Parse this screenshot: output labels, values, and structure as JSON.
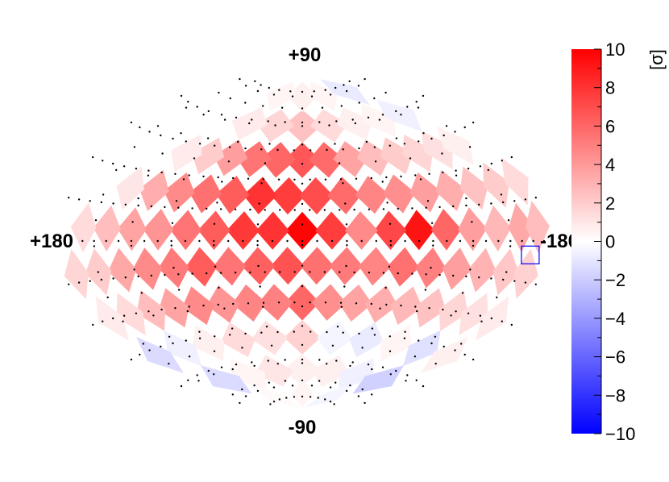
{
  "chart_data": {
    "type": "heatmap",
    "projection": "hammer-aitoff",
    "coordinate_labels": {
      "north": "+90",
      "south": "-90",
      "left": "+180",
      "right": "-180"
    },
    "colorbar": {
      "unit": "[σ]",
      "range": [
        -10,
        10
      ],
      "ticks": [
        "10",
        "8",
        "6",
        "4",
        "2",
        "0",
        "−2",
        "−4",
        "−6",
        "−8",
        "−10"
      ],
      "low_color": "#0000ff",
      "mid_color": "#ffffff",
      "high_color": "#ff0000"
    },
    "marker_box": {
      "lon": -168,
      "lat": -5,
      "color": "#0000ff"
    },
    "cells": [
      {
        "lon": 0,
        "lat": 5,
        "value": 9.8
      },
      {
        "lon": -80,
        "lat": 5,
        "value": 9.2
      },
      {
        "lon": 20,
        "lat": 5,
        "value": 8.0
      },
      {
        "lon": -20,
        "lat": 5,
        "value": 7.6
      },
      {
        "lon": 40,
        "lat": 5,
        "value": 7.8
      },
      {
        "lon": -60,
        "lat": 5,
        "value": 7.2
      },
      {
        "lon": 60,
        "lat": 5,
        "value": 6.4
      },
      {
        "lon": -100,
        "lat": 5,
        "value": 6.0
      },
      {
        "lon": 80,
        "lat": 5,
        "value": 5.4
      },
      {
        "lon": -40,
        "lat": 5,
        "value": 4.6
      },
      {
        "lon": 100,
        "lat": 5,
        "value": 4.2
      },
      {
        "lon": -120,
        "lat": 5,
        "value": 3.8
      },
      {
        "lon": 120,
        "lat": 5,
        "value": 3.6
      },
      {
        "lon": -140,
        "lat": 5,
        "value": 2.8
      },
      {
        "lon": -160,
        "lat": 5,
        "value": 3.4
      },
      {
        "lon": 140,
        "lat": 5,
        "value": 2.6
      },
      {
        "lon": 160,
        "lat": 5,
        "value": 1.4
      },
      {
        "lon": -175,
        "lat": 5,
        "value": 2.6
      },
      {
        "lon": 10,
        "lat": 22,
        "value": 7.6
      },
      {
        "lon": -10,
        "lat": 22,
        "value": 7.0
      },
      {
        "lon": 30,
        "lat": 22,
        "value": 8.0
      },
      {
        "lon": -30,
        "lat": 22,
        "value": 5.8
      },
      {
        "lon": 50,
        "lat": 22,
        "value": 6.4
      },
      {
        "lon": -50,
        "lat": 22,
        "value": 4.8
      },
      {
        "lon": 70,
        "lat": 22,
        "value": 5.6
      },
      {
        "lon": -70,
        "lat": 22,
        "value": 4.4
      },
      {
        "lon": 90,
        "lat": 22,
        "value": 4.6
      },
      {
        "lon": -90,
        "lat": 22,
        "value": 3.8
      },
      {
        "lon": 110,
        "lat": 22,
        "value": 3.2
      },
      {
        "lon": -110,
        "lat": 22,
        "value": 3.2
      },
      {
        "lon": -130,
        "lat": 22,
        "value": 2.4
      },
      {
        "lon": -150,
        "lat": 22,
        "value": 2.0
      },
      {
        "lon": -170,
        "lat": 22,
        "value": 1.4
      },
      {
        "lon": 130,
        "lat": 22,
        "value": 1.0
      },
      {
        "lon": 0,
        "lat": 40,
        "value": 6.6
      },
      {
        "lon": 20,
        "lat": 40,
        "value": 6.0
      },
      {
        "lon": -20,
        "lat": 40,
        "value": 5.8
      },
      {
        "lon": 40,
        "lat": 40,
        "value": 5.4
      },
      {
        "lon": -40,
        "lat": 40,
        "value": 3.6
      },
      {
        "lon": 60,
        "lat": 40,
        "value": 3.8
      },
      {
        "lon": -60,
        "lat": 40,
        "value": 2.6
      },
      {
        "lon": 80,
        "lat": 40,
        "value": 2.0
      },
      {
        "lon": -80,
        "lat": 40,
        "value": 2.0
      },
      {
        "lon": -100,
        "lat": 40,
        "value": 1.6
      },
      {
        "lon": -120,
        "lat": 40,
        "value": 1.2
      },
      {
        "lon": 100,
        "lat": 40,
        "value": 0.8
      },
      {
        "lon": -140,
        "lat": 40,
        "value": 0.6
      },
      {
        "lon": 0,
        "lat": 58,
        "value": 2.4
      },
      {
        "lon": 30,
        "lat": 58,
        "value": 1.6
      },
      {
        "lon": -30,
        "lat": 58,
        "value": 1.4
      },
      {
        "lon": 60,
        "lat": 58,
        "value": 0.8
      },
      {
        "lon": -60,
        "lat": 58,
        "value": 0.6
      },
      {
        "lon": -90,
        "lat": 58,
        "value": 0.4
      },
      {
        "lon": -120,
        "lat": 58,
        "value": -0.6
      },
      {
        "lon": 0,
        "lat": 75,
        "value": 0.6
      },
      {
        "lon": 45,
        "lat": 75,
        "value": 0.4
      },
      {
        "lon": -45,
        "lat": 75,
        "value": 0.4
      },
      {
        "lon": -100,
        "lat": 75,
        "value": -0.8
      },
      {
        "lon": 10,
        "lat": -12,
        "value": 6.8
      },
      {
        "lon": -10,
        "lat": -12,
        "value": 5.6
      },
      {
        "lon": 30,
        "lat": -12,
        "value": 6.2
      },
      {
        "lon": -30,
        "lat": -12,
        "value": 5.2
      },
      {
        "lon": 50,
        "lat": -12,
        "value": 5.4
      },
      {
        "lon": -50,
        "lat": -12,
        "value": 4.8
      },
      {
        "lon": 70,
        "lat": -12,
        "value": 6.4
      },
      {
        "lon": -70,
        "lat": -12,
        "value": 5.6
      },
      {
        "lon": 90,
        "lat": -12,
        "value": 5.2
      },
      {
        "lon": -90,
        "lat": -12,
        "value": 5.0
      },
      {
        "lon": 110,
        "lat": -12,
        "value": 4.6
      },
      {
        "lon": -110,
        "lat": -12,
        "value": 3.8
      },
      {
        "lon": 130,
        "lat": -12,
        "value": 3.4
      },
      {
        "lon": -130,
        "lat": -12,
        "value": 3.0
      },
      {
        "lon": 150,
        "lat": -12,
        "value": 2.0
      },
      {
        "lon": -150,
        "lat": -12,
        "value": 2.2
      },
      {
        "lon": 170,
        "lat": -12,
        "value": 1.6
      },
      {
        "lon": -168,
        "lat": -12,
        "value": 1.8
      },
      {
        "lon": 0,
        "lat": -30,
        "value": 6.0
      },
      {
        "lon": 20,
        "lat": -30,
        "value": 5.0
      },
      {
        "lon": -20,
        "lat": -30,
        "value": 4.4
      },
      {
        "lon": 40,
        "lat": -30,
        "value": 4.8
      },
      {
        "lon": -40,
        "lat": -30,
        "value": 3.6
      },
      {
        "lon": 60,
        "lat": -30,
        "value": 4.2
      },
      {
        "lon": -60,
        "lat": -30,
        "value": 3.2
      },
      {
        "lon": 80,
        "lat": -30,
        "value": 4.6
      },
      {
        "lon": -80,
        "lat": -30,
        "value": 2.8
      },
      {
        "lon": 100,
        "lat": -30,
        "value": 3.6
      },
      {
        "lon": -100,
        "lat": -30,
        "value": 2.4
      },
      {
        "lon": 120,
        "lat": -30,
        "value": 2.6
      },
      {
        "lon": -120,
        "lat": -30,
        "value": 1.6
      },
      {
        "lon": 140,
        "lat": -30,
        "value": 1.4
      },
      {
        "lon": -140,
        "lat": -30,
        "value": 1.2
      },
      {
        "lon": 160,
        "lat": -30,
        "value": 0.8
      },
      {
        "lon": -160,
        "lat": -30,
        "value": 0.8
      },
      {
        "lon": 0,
        "lat": -48,
        "value": 1.8
      },
      {
        "lon": 30,
        "lat": -48,
        "value": 1.2
      },
      {
        "lon": -30,
        "lat": -48,
        "value": -0.4
      },
      {
        "lon": 60,
        "lat": -48,
        "value": 1.4
      },
      {
        "lon": -60,
        "lat": -48,
        "value": -0.8
      },
      {
        "lon": 90,
        "lat": -48,
        "value": 0.6
      },
      {
        "lon": -90,
        "lat": -48,
        "value": 0.4
      },
      {
        "lon": 120,
        "lat": -48,
        "value": -0.6
      },
      {
        "lon": -120,
        "lat": -48,
        "value": -1.2
      },
      {
        "lon": 150,
        "lat": -48,
        "value": -1.4
      },
      {
        "lon": -150,
        "lat": -48,
        "value": 0.6
      },
      {
        "lon": 0,
        "lat": -66,
        "value": 0.6
      },
      {
        "lon": 40,
        "lat": -66,
        "value": 1.0
      },
      {
        "lon": -40,
        "lat": -66,
        "value": 0.6
      },
      {
        "lon": 80,
        "lat": -66,
        "value": 0.4
      },
      {
        "lon": -80,
        "lat": -66,
        "value": -0.6
      },
      {
        "lon": 120,
        "lat": -66,
        "value": -1.4
      },
      {
        "lon": -120,
        "lat": -66,
        "value": -1.8
      },
      {
        "lon": 0,
        "lat": -80,
        "value": 0.4
      },
      {
        "lon": 90,
        "lat": -80,
        "value": 0.2
      },
      {
        "lon": -90,
        "lat": -80,
        "value": -0.4
      }
    ]
  }
}
